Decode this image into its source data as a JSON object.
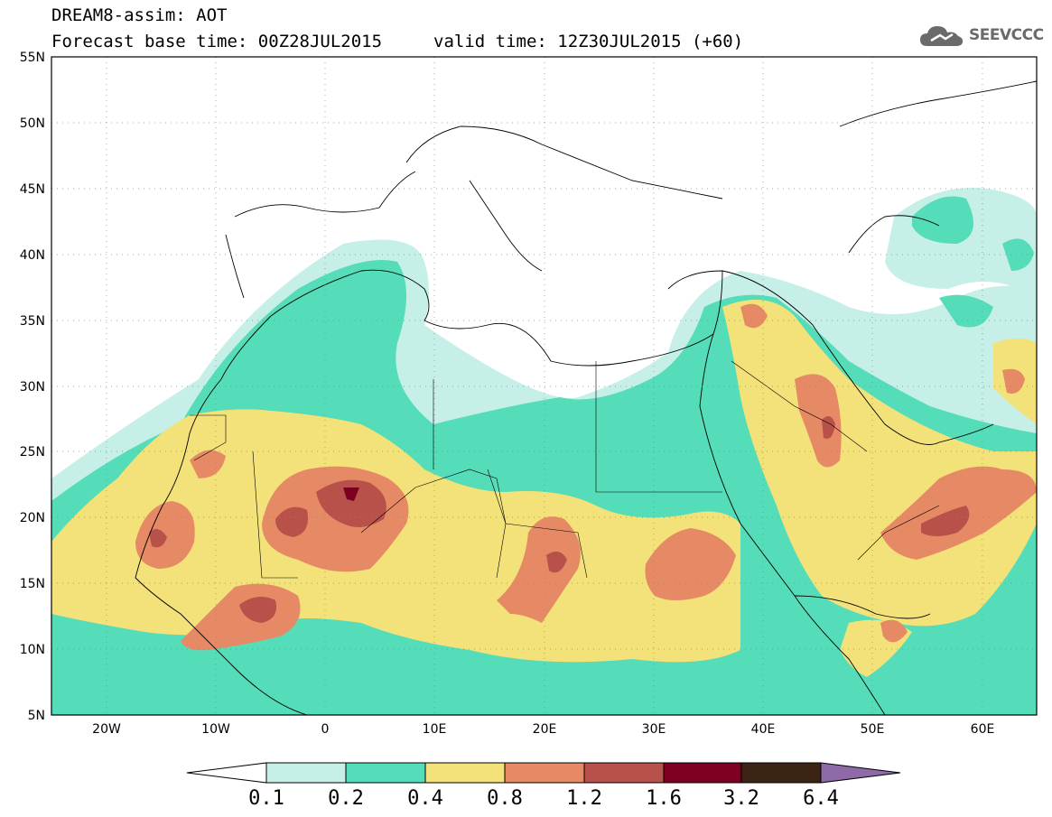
{
  "header": {
    "title": "DREAM8-assim: AOT",
    "base_time": "Forecast base time: 00Z28JUL2015",
    "valid_time": "valid time: 12Z30JUL2015 (+60)",
    "logo_text": "SEEVCCC"
  },
  "map": {
    "lat_labels": [
      "55N",
      "50N",
      "45N",
      "40N",
      "35N",
      "30N",
      "25N",
      "20N",
      "15N",
      "10N",
      "5N"
    ],
    "lon_labels": [
      "20W",
      "10W",
      "0",
      "10E",
      "20E",
      "30E",
      "40E",
      "50E",
      "60E"
    ],
    "lon_range": [
      -25,
      65
    ],
    "lat_range": [
      5,
      55
    ]
  },
  "colorbar": {
    "labels": [
      "0.1",
      "0.2",
      "0.4",
      "0.8",
      "1.2",
      "1.6",
      "3.2",
      "6.4"
    ],
    "colors": [
      "#ffffff",
      "#c6efe8",
      "#55dcb8",
      "#f3e27a",
      "#e68a65",
      "#b8514a",
      "#7d0022",
      "#3b2414",
      "#8f6aa8"
    ]
  },
  "colors": {
    "level1": "#c6efe8",
    "level2": "#55dcb8",
    "level3": "#f3e27a",
    "level4": "#e68a65",
    "level5": "#b8514a",
    "level6": "#7d0022"
  }
}
